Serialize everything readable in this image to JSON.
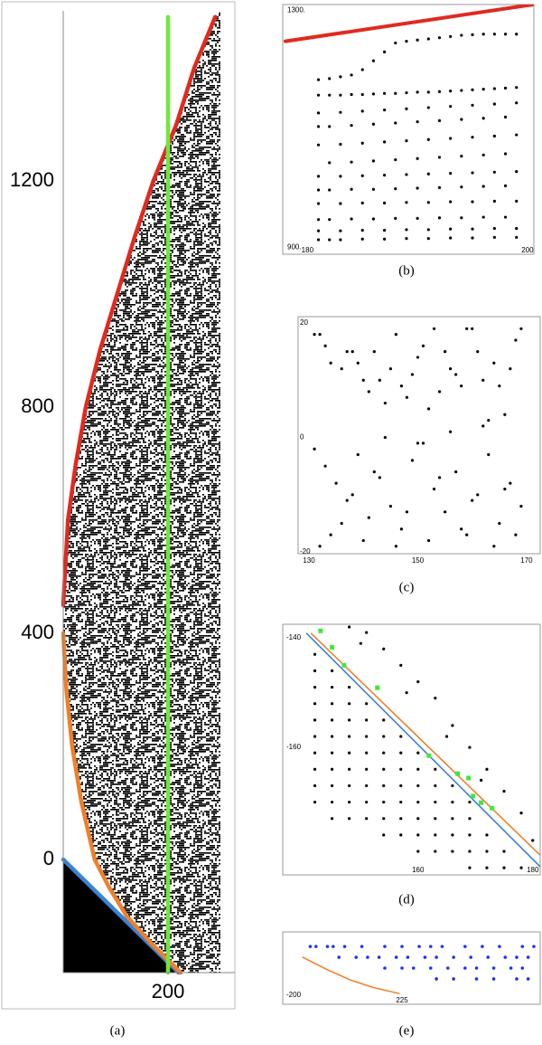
{
  "chart_data": [
    {
      "type": "line",
      "caption": "(a)",
      "xlim": [
        0,
        300
      ],
      "ylim": [
        -200,
        1500
      ],
      "xticks": [
        200
      ],
      "yticks": [
        0,
        400,
        800,
        1200
      ],
      "series": [
        {
          "kind": "area",
          "color": "#000000",
          "x": [
            0,
            220
          ],
          "values": [
            0,
            -200
          ]
        },
        {
          "kind": "line",
          "color": "#3b82d6",
          "x": [
            0,
            220
          ],
          "values": [
            0,
            -200
          ]
        },
        {
          "kind": "line",
          "color": "#f07f2a",
          "x": [
            0,
            6,
            17,
            35,
            60,
            88,
            121,
            170,
            224
          ],
          "values": [
            400,
            300,
            200,
            100,
            0,
            -50,
            -100,
            -150,
            -200
          ]
        },
        {
          "kind": "line",
          "color": "#e02a1f",
          "x": [
            0,
            9,
            24,
            43,
            70,
            103,
            136,
            172,
            216,
            250,
            290
          ],
          "values": [
            450,
            600,
            700,
            800,
            900,
            1000,
            1100,
            1200,
            1300,
            1400,
            1490
          ]
        },
        {
          "kind": "line",
          "color": "#6fe83a",
          "x": [
            200,
            200
          ],
          "values": [
            -200,
            1490
          ]
        }
      ]
    },
    {
      "type": "scatter",
      "caption": "(b)",
      "xlim": [
        178,
        200.5
      ],
      "ylim": [
        890,
        1310
      ],
      "xticks": [
        180,
        200
      ],
      "yticks": [
        {
          "value": 900,
          "label": "900."
        },
        {
          "value": 1300,
          "label": "1300."
        }
      ],
      "series": [
        {
          "kind": "line",
          "color": "#e02a1f",
          "x": [
            178,
            200.5
          ],
          "values": [
            1248,
            1310
          ]
        },
        {
          "kind": "dots",
          "color": "#000000",
          "x": [
            188,
            189,
            190,
            191,
            192,
            193,
            194,
            195,
            196,
            197,
            198,
            199
          ],
          "values": [
            1245,
            1248,
            1250,
            1252,
            1254,
            1256,
            1258,
            1259,
            1260,
            1260,
            1260,
            1260
          ]
        },
        {
          "kind": "dots",
          "color": "#000000",
          "x": [
            181,
            182,
            183,
            184,
            185,
            186,
            187
          ],
          "values": [
            1183,
            1185,
            1188,
            1191,
            1200,
            1215,
            1230
          ]
        },
        {
          "kind": "dots",
          "color": "#000000",
          "x": [
            181,
            182,
            183,
            184,
            185,
            186,
            187,
            188,
            189,
            190,
            191,
            192,
            193,
            194,
            195,
            196,
            197,
            198,
            199
          ],
          "values": [
            1157,
            1157,
            1157,
            1158,
            1158,
            1159,
            1160,
            1160,
            1161,
            1162,
            1162,
            1163,
            1164,
            1165,
            1166,
            1167,
            1168,
            1169,
            1170
          ]
        },
        {
          "kind": "dots",
          "color": "#000000",
          "x": [
            181,
            183,
            185,
            187,
            189,
            191,
            193,
            195,
            197,
            199
          ],
          "values": [
            1127,
            1128,
            1130,
            1132,
            1134,
            1136,
            1138,
            1140,
            1142,
            1144
          ]
        },
        {
          "kind": "dots",
          "color": "#000000",
          "x": [
            181,
            182,
            184,
            186,
            188,
            190,
            192,
            194,
            196,
            198
          ],
          "values": [
            1104,
            1104,
            1106,
            1108,
            1110,
            1112,
            1114,
            1116,
            1118,
            1120
          ]
        },
        {
          "kind": "dots",
          "color": "#000000",
          "x": [
            181,
            183,
            185,
            187,
            189,
            191,
            193,
            195,
            197,
            199
          ],
          "values": [
            1073,
            1074,
            1076,
            1078,
            1080,
            1082,
            1084,
            1086,
            1088,
            1090
          ]
        },
        {
          "kind": "dots",
          "color": "#000000",
          "x": [
            182,
            184,
            186,
            188,
            190,
            192,
            194,
            196,
            198
          ],
          "values": [
            1043,
            1044,
            1046,
            1048,
            1050,
            1052,
            1054,
            1056,
            1058
          ]
        },
        {
          "kind": "dots",
          "color": "#000000",
          "x": [
            181,
            183,
            185,
            187,
            189,
            191,
            193,
            195,
            197,
            199
          ],
          "values": [
            1020,
            1020,
            1021,
            1022,
            1023,
            1024,
            1025,
            1026,
            1027,
            1028
          ]
        },
        {
          "kind": "dots",
          "color": "#000000",
          "x": [
            181,
            182,
            184,
            186,
            188,
            190,
            192,
            194,
            196,
            198
          ],
          "values": [
            997,
            997,
            998,
            998,
            999,
            1000,
            1001,
            1002,
            1003,
            1004
          ]
        },
        {
          "kind": "dots",
          "color": "#000000",
          "x": [
            181,
            183,
            185,
            187,
            189,
            191,
            193,
            195,
            197,
            199
          ],
          "values": [
            974,
            974,
            975,
            975,
            976,
            976,
            977,
            977,
            978,
            978
          ]
        },
        {
          "kind": "dots",
          "color": "#000000",
          "x": [
            181,
            182,
            184,
            186,
            188,
            190,
            192,
            194,
            196,
            198
          ],
          "values": [
            947,
            947,
            948,
            948,
            949,
            949,
            950,
            950,
            951,
            951
          ]
        },
        {
          "kind": "dots",
          "color": "#000000",
          "x": [
            181,
            183,
            185,
            187,
            189,
            191,
            193,
            195,
            197,
            199
          ],
          "values": [
            928,
            928,
            929,
            929,
            930,
            930,
            931,
            931,
            932,
            932
          ]
        },
        {
          "kind": "dots",
          "color": "#000000",
          "x": [
            181,
            182,
            183,
            185,
            187,
            189,
            191,
            193,
            195,
            197,
            199
          ],
          "values": [
            913,
            913,
            913,
            914,
            914,
            915,
            915,
            916,
            916,
            917,
            917
          ]
        }
      ]
    },
    {
      "type": "scatter",
      "caption": "(c)",
      "xlim": [
        128,
        172.5
      ],
      "ylim": [
        -20.3,
        21.1
      ],
      "xticks": [
        130,
        150,
        170
      ],
      "yticks": [
        -20,
        0,
        20
      ],
      "series": [
        {
          "kind": "dots",
          "color": "#000000",
          "x": [
            131,
            132,
            133,
            134,
            136,
            137,
            138,
            139,
            140,
            141,
            142,
            143,
            144,
            145,
            146,
            147,
            148,
            149,
            150,
            151,
            152,
            153,
            154,
            155,
            156,
            157,
            158,
            159,
            160,
            161,
            162,
            163,
            164,
            165,
            166,
            167,
            168,
            169,
            131,
            133,
            135,
            137,
            139,
            141,
            143,
            145,
            147,
            149,
            151,
            153,
            155,
            157,
            159,
            161,
            163,
            165,
            167,
            169,
            132,
            134,
            136,
            138,
            140,
            142,
            144,
            146,
            148,
            150,
            152,
            154,
            156,
            158,
            160,
            162,
            164,
            166,
            168
          ],
          "values": [
            18,
            18,
            16,
            13,
            12,
            15,
            15,
            13,
            10,
            8,
            15,
            10,
            6,
            12,
            18,
            9,
            7,
            11,
            14,
            16,
            5,
            19,
            8,
            15,
            12,
            11,
            9,
            19,
            19,
            15,
            10,
            3,
            13,
            9,
            4,
            12,
            17,
            19,
            -2,
            -5,
            -8,
            -11,
            -3,
            -14,
            -7,
            -12,
            -16,
            -4,
            -1,
            -9,
            -13,
            -6,
            -17,
            -10,
            -3,
            -15,
            -8,
            -12,
            -19,
            -17,
            -15,
            -10,
            -18,
            -6,
            0,
            -19,
            -13,
            -1,
            -18,
            -7,
            1,
            -16,
            -11,
            2,
            -19,
            -9,
            -17
          ]
        }
      ]
    },
    {
      "type": "scatter",
      "caption": "(d)",
      "xlim": [
        136.4,
        181.3
      ],
      "ylim": [
        -183.3,
        -137.5
      ],
      "xticks": [
        160,
        180
      ],
      "yticks": [
        -160,
        -140
      ],
      "series": [
        {
          "kind": "line",
          "color": "#3b82d6",
          "x": [
            140.6,
            181.3
          ],
          "values": [
            -139.2,
            -181.8
          ]
        },
        {
          "kind": "line",
          "color": "#f07f2a",
          "x": [
            141.4,
            181.3
          ],
          "values": [
            -139.2,
            -179.7
          ]
        },
        {
          "kind": "dots",
          "color": "#000000",
          "x": [
            142,
            142,
            142,
            142,
            142,
            142,
            142,
            142,
            142,
            142,
            145,
            145,
            145,
            145,
            145,
            145,
            145,
            145,
            145,
            145,
            148,
            148,
            148,
            148,
            148,
            148,
            148,
            148,
            148,
            151,
            151,
            151,
            151,
            151,
            151,
            151,
            151,
            154,
            154,
            154,
            154,
            154,
            154,
            154,
            154,
            157,
            157,
            157,
            157,
            157,
            157,
            157,
            160,
            160,
            160,
            160,
            160,
            160,
            160,
            163,
            163,
            163,
            163,
            163,
            163,
            166,
            166,
            166,
            166,
            166,
            169,
            169,
            169,
            169,
            169,
            172,
            172,
            172,
            175,
            175,
            178,
            148,
            151,
            154,
            157,
            160,
            163,
            166,
            169,
            172,
            175,
            178,
            180,
            150,
            158,
            165,
            171
          ],
          "values": [
            -143,
            -146,
            -149,
            -152,
            -155,
            -158,
            -161,
            -164,
            -167,
            -170,
            -146,
            -149,
            -152,
            -155,
            -158,
            -161,
            -164,
            -167,
            -170,
            -173,
            -149,
            -152,
            -155,
            -158,
            -161,
            -164,
            -167,
            -170,
            -173,
            -152,
            -155,
            -158,
            -161,
            -164,
            -167,
            -170,
            -173,
            -155,
            -158,
            -161,
            -164,
            -167,
            -170,
            -173,
            -176,
            -158,
            -161,
            -164,
            -167,
            -170,
            -173,
            -176,
            -161,
            -164,
            -167,
            -170,
            -173,
            -176,
            -179,
            -164,
            -167,
            -170,
            -173,
            -176,
            -179,
            -167,
            -170,
            -173,
            -176,
            -179,
            -170,
            -173,
            -176,
            -179,
            -182,
            -176,
            -179,
            -182,
            -179,
            -182,
            -182,
            -138,
            -139,
            -142,
            -145,
            -148,
            -151,
            -156,
            -160,
            -164,
            -168,
            -172,
            -177,
            -141,
            -150,
            -158,
            -166
          ]
        },
        {
          "kind": "squares",
          "color": "#3ee83a",
          "x": [
            143,
            145,
            147.1,
            152.9,
            161.9,
            166.9,
            168.8,
            169.6,
            171,
            172.9
          ],
          "values": [
            -138.7,
            -141.7,
            -145,
            -149.1,
            -161.5,
            -164.8,
            -165.6,
            -168.9,
            -170.1,
            -171.1
          ]
        }
      ]
    },
    {
      "type": "scatter",
      "caption": "(e)",
      "xlim": [
        204.2,
        249.1
      ],
      "ylim": [
        -201.7,
        -188.3
      ],
      "xticks": [
        225
      ],
      "yticks": [
        -200
      ],
      "series": [
        {
          "kind": "line",
          "color": "#f07f2a",
          "x": [
            207.7,
            212,
            216,
            220,
            224.5
          ],
          "values": [
            -193,
            -195.3,
            -197.2,
            -198.6,
            -199.7
          ]
        },
        {
          "kind": "dots",
          "color": "#2233ee",
          "x": [
            209,
            210,
            212,
            213,
            215,
            218,
            222,
            225,
            228,
            230,
            232,
            236,
            239,
            242,
            246,
            248,
            214,
            217,
            219,
            221,
            224,
            226,
            229,
            231,
            234,
            237,
            240,
            243,
            245,
            247,
            222,
            225,
            227,
            230,
            233,
            236,
            238,
            241,
            244,
            246,
            231,
            234,
            238,
            241,
            245,
            247
          ],
          "values": [
            -191,
            -191,
            -191,
            -191,
            -191,
            -191,
            -191,
            -191,
            -191,
            -191,
            -191,
            -191,
            -191,
            -191,
            -191,
            -191,
            -193,
            -193,
            -193,
            -193,
            -193,
            -193,
            -193,
            -193,
            -193,
            -193,
            -193,
            -193,
            -193,
            -193,
            -195,
            -195,
            -195,
            -195,
            -195,
            -195,
            -195,
            -195,
            -195,
            -195,
            -197,
            -197,
            -197,
            -197,
            -197,
            -197
          ]
        }
      ]
    }
  ]
}
